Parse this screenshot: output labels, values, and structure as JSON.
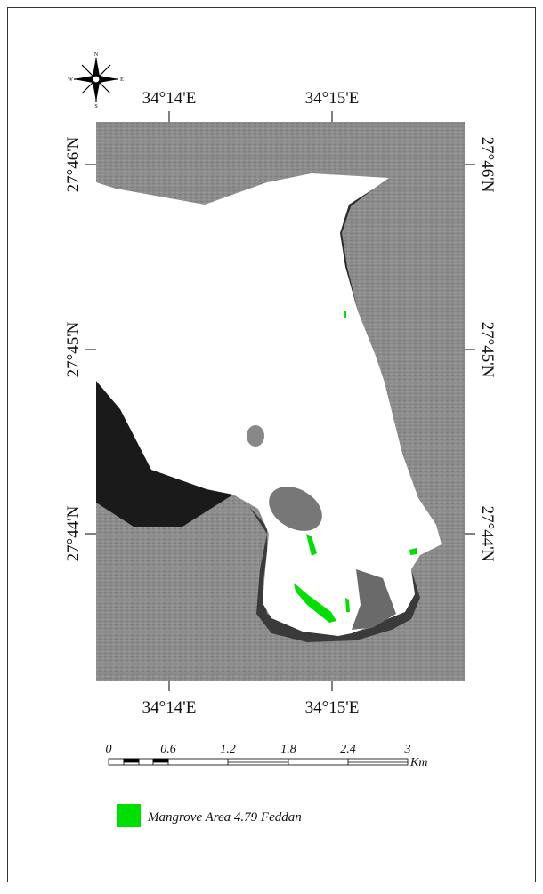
{
  "compass": {
    "north": "N",
    "south": "S",
    "east": "E",
    "west": "W"
  },
  "top_labels": [
    "34°14'E",
    "34°15'E"
  ],
  "bottom_labels": [
    "34°14'E",
    "34°15'E"
  ],
  "left_labels": [
    "27°46'N",
    "27°45'N",
    "27°44'N"
  ],
  "right_labels": [
    "27°46'N",
    "27°45'N",
    "27°44'N"
  ],
  "scale_bar": {
    "labels": [
      "0",
      "0.6",
      "1.2",
      "1.8",
      "2.4",
      "3"
    ],
    "unit": "Km"
  },
  "legend": {
    "label": "Mangrove Area 4.79 Feddan"
  }
}
